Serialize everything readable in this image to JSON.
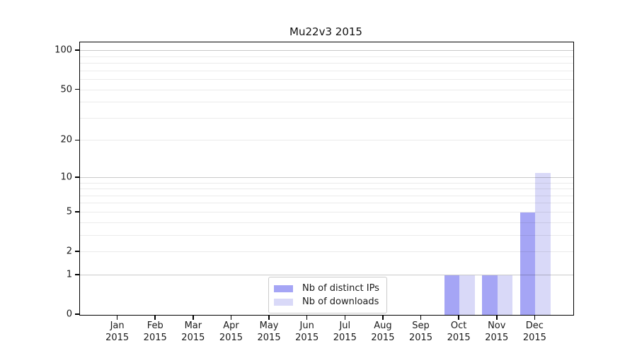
{
  "title": "Mu22v3 2015",
  "chart_data": {
    "type": "bar",
    "title": "Mu22v3 2015",
    "categories": [
      "Jan 2015",
      "Feb 2015",
      "Mar 2015",
      "Apr 2015",
      "May 2015",
      "Jun 2015",
      "Jul 2015",
      "Aug 2015",
      "Sep 2015",
      "Oct 2015",
      "Nov 2015",
      "Dec 2015"
    ],
    "series": [
      {
        "name": "Nb of distinct IPs",
        "color": "#a5a5f5",
        "values": [
          0,
          0,
          0,
          0,
          0,
          0,
          0,
          0,
          0,
          1,
          1,
          5
        ]
      },
      {
        "name": "Nb of downloads",
        "color": "#d9d9f8",
        "values": [
          0,
          0,
          0,
          0,
          0,
          0,
          0,
          0,
          0,
          1,
          1,
          11
        ]
      }
    ],
    "xlabel": "",
    "ylabel": "",
    "yscale": "log10(value+1)",
    "ylim": [
      0,
      116
    ],
    "ytick_values": [
      0,
      1,
      2,
      5,
      10,
      20,
      50,
      100
    ],
    "grid": {
      "major_values": [
        1,
        10,
        100
      ],
      "minor_values": [
        2,
        3,
        4,
        5,
        6,
        7,
        8,
        9,
        20,
        30,
        40,
        50,
        60,
        70,
        80,
        90
      ]
    },
    "legend_position": "inside-bottom-center"
  }
}
